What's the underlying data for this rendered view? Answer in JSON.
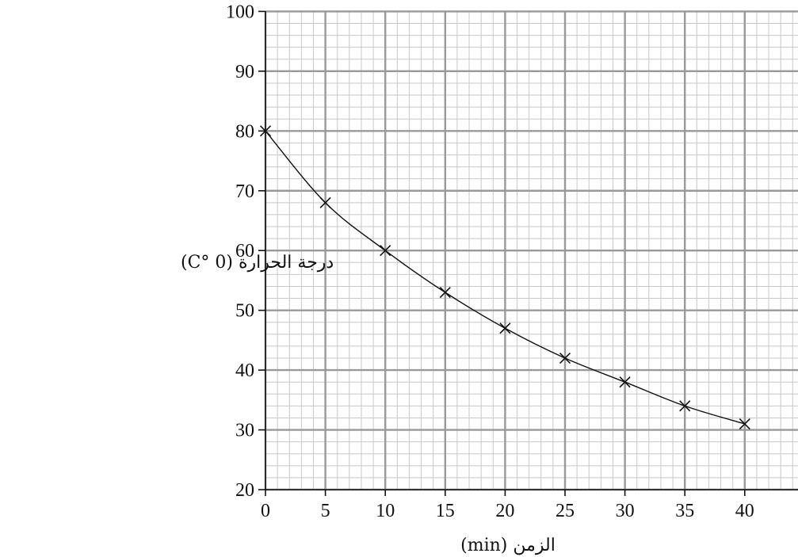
{
  "chart_data": {
    "type": "scatter",
    "title": "",
    "xlabel": "الزمن (min)",
    "ylabel": "درجة الحرارة (C° 0)",
    "xlim": [
      0,
      44
    ],
    "ylim": [
      20,
      100
    ],
    "x_ticks": [
      "0",
      "5",
      "10",
      "15",
      "20",
      "25",
      "30",
      "35",
      "40"
    ],
    "y_ticks": [
      "20",
      "30",
      "40",
      "50",
      "60",
      "70",
      "80",
      "90",
      "100"
    ],
    "grid": true,
    "marker": "x",
    "smooth_curve": true,
    "series": [
      {
        "x": [
          0,
          5,
          10,
          15,
          20,
          25,
          30,
          35,
          40
        ],
        "y": [
          80,
          68,
          60,
          53,
          47,
          42,
          38,
          34,
          31
        ]
      }
    ],
    "colors": {
      "major_grid": "#999999",
      "minor_grid": "#c8c8c8",
      "ink": "#111111"
    }
  }
}
